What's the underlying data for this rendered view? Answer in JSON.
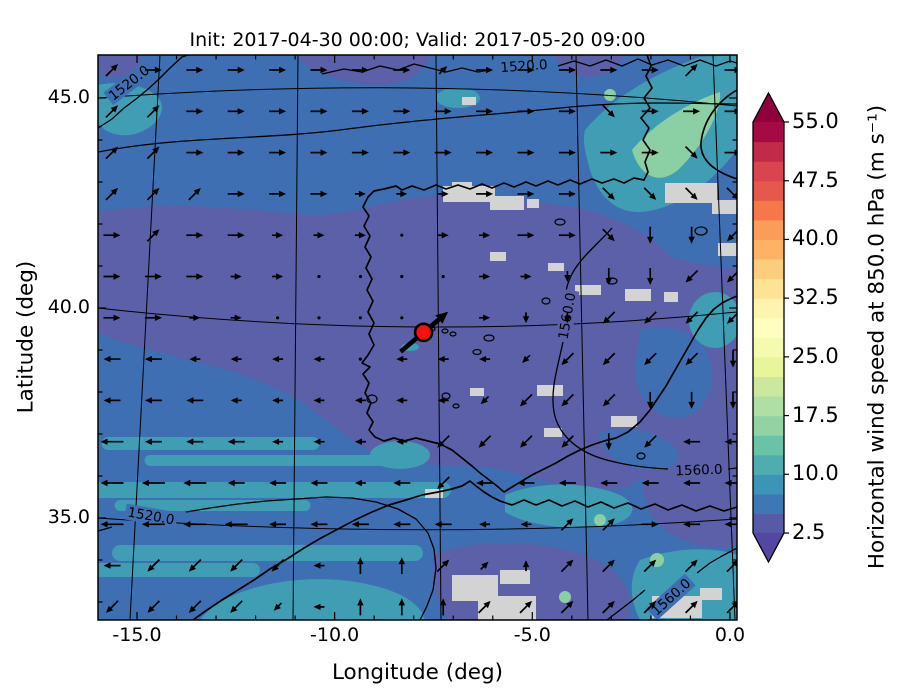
{
  "figure": {
    "title": "Init: 2017-04-30 00:00; Valid: 2017-05-20 09:00",
    "xlabel": "Longitude (deg)",
    "ylabel": "Latitude (deg)"
  },
  "chart_data": {
    "type": "map",
    "subtype": "filled-contour wind speed + quiver arrows + geopotential contours",
    "title": "Init: 2017-04-30 00:00; Valid: 2017-05-20 09:00",
    "xlabel": "Longitude (deg)",
    "ylabel": "Latitude (deg)",
    "lon_range": [
      -16.0,
      0.2
    ],
    "lat_range": [
      32.6,
      46.1
    ],
    "x_ticks": [
      {
        "value": -15,
        "label": "-15.0"
      },
      {
        "value": -10,
        "label": "-10.0"
      },
      {
        "value": -5,
        "label": "-5.0"
      },
      {
        "value": 0,
        "label": "0.0"
      }
    ],
    "y_ticks": [
      {
        "value": 45,
        "label": "45.0"
      },
      {
        "value": 40,
        "label": "40.0"
      },
      {
        "value": 35,
        "label": "35.0"
      }
    ],
    "colorbar": {
      "label": "Horizontal wind speed at 850.0 hPa (m s⁻¹)",
      "tick_values": [
        55.0,
        47.5,
        40.0,
        32.5,
        25.0,
        17.5,
        10.0,
        2.5
      ],
      "tick_labels": [
        "55.0",
        "47.5",
        "40.0",
        "32.5",
        "25.0",
        "17.5",
        "10.0",
        "2.5"
      ],
      "band_min": 2.5,
      "band_max": 55.0,
      "band_step": 2.5,
      "extend": "both",
      "band_colors_bottom_to_top": [
        "#575aa7",
        "#3f77b5",
        "#3c95b8",
        "#4fadb0",
        "#69c3a6",
        "#92d3a4",
        "#b0dfa4",
        "#cbe89e",
        "#e8f59a",
        "#f4fbae",
        "#feffbe",
        "#fef3af",
        "#fee394",
        "#fdcd7e",
        "#fdb365",
        "#f99d58",
        "#f5774a",
        "#e6584b",
        "#d9444f",
        "#c22a49",
        "#a60a44"
      ],
      "under_color": "#5447a1",
      "over_color": "#8e013a"
    },
    "contour_labels": [
      {
        "text": "1520.0",
        "x": 129,
        "y": 83,
        "rot": -38,
        "bg": "#3e6fb2"
      },
      {
        "text": "1520.0",
        "x": 524,
        "y": 66,
        "rot": -4,
        "bg": "#3e6fb2"
      },
      {
        "text": "1560.0",
        "x": 567,
        "y": 316,
        "rot": -80,
        "bg": "#5c60a9"
      },
      {
        "text": "1560.0",
        "x": 699,
        "y": 470,
        "rot": -2,
        "bg": "#5c60a9"
      },
      {
        "text": "1560.0",
        "x": 671,
        "y": 597,
        "rot": -42,
        "bg": "#3e6fb2"
      },
      {
        "text": "1520.0",
        "x": 151,
        "y": 516,
        "rot": 10,
        "bg": "#3e6fb2"
      }
    ],
    "marker": {
      "lon": -7.75,
      "lat": 39.42,
      "color": "#fb0f0c",
      "edge": "#000000",
      "arrow_dir_deg": 40
    },
    "region_colors": {
      "ocean_blue_5_75": "#3e6fb2",
      "purple_25_5": "#5c60a9",
      "teal_10": "#3f9db4",
      "green_15": "#8bd0a4",
      "masked_grey": "#d3d3d3"
    },
    "grey_patches": [
      [
        443,
        186,
        52,
        16
      ],
      [
        490,
        196,
        34,
        14
      ],
      [
        452,
        182,
        20,
        10
      ],
      [
        527,
        199,
        12,
        9
      ],
      [
        665,
        183,
        52,
        20
      ],
      [
        712,
        200,
        25,
        14
      ],
      [
        490,
        252,
        16,
        9
      ],
      [
        548,
        263,
        16,
        8
      ],
      [
        575,
        285,
        26,
        10
      ],
      [
        625,
        289,
        26,
        12
      ],
      [
        664,
        292,
        14,
        10
      ],
      [
        537,
        385,
        26,
        11
      ],
      [
        611,
        416,
        26,
        11
      ],
      [
        544,
        428,
        18,
        9
      ],
      [
        470,
        388,
        14,
        8
      ],
      [
        425,
        489,
        18,
        9
      ],
      [
        452,
        575,
        46,
        26
      ],
      [
        478,
        596,
        58,
        24
      ],
      [
        500,
        570,
        30,
        14
      ],
      [
        652,
        596,
        50,
        22
      ],
      [
        700,
        588,
        22,
        12
      ],
      [
        718,
        243,
        19,
        13
      ],
      [
        462,
        97,
        14,
        8
      ]
    ],
    "wind_field": {
      "note": "coarse 16x14 sample of quiver arrows; tokens: compass dir; lowercase=weak, '+'=strong, '.'=calm",
      "cols": 16,
      "rows": 14,
      "grid": [
        "NE,E,E,E,E,E,E,E,ne,E,E,E,E,E,NE,E",
        "NE,NE,E,E,E,E,E,E,E,E,E,E,SE,E,E,E",
        "NE,NE,E,E,E,E,E,E,E,E,E,E,E,E,SE,E",
        "NE,NE,NE,E,E,E,e,e,e,E,E,E,SE,SE,SE,SE",
        "E,NE,E,E,e,e,e,.,e,e,E,E,SE,S,S,SW",
        "E,E,E,e,e,.,.,.,.,e,e,s,S,S,SW,SW",
        "E,E,e,e,.,.,.,.,.,e,s,s,SW,SW,SW,SW",
        "W,W,w,w,w,w,.,w,w,w,sw,SW,SW,SW,SW,S",
        "W,W,W,w,w,w,w,w,w,sw,SW,SW,SW,S,S,S",
        "W+,W,W,W,w,w,w,w,SW,SW,SW,SW,S,SW,W,W",
        "W+,W+,W+,W,W,W,w,W,SW,W,W,W,W,W,W,W",
        "W+,W+,W+,W+,W,W,W,W,W,w,w,NE,NE,E,W,W",
        "W,SW,SW,SW,SW,w,N,N,NE,ne,n,NE,NE,NE,NE,NE",
        "SW,SW,SW,SW,sw,w,N,N,N,NE,NE,NE,NE,NE,NE,NE"
      ]
    },
    "geopotential_contour_values": [
      1520.0,
      1560.0
    ]
  }
}
